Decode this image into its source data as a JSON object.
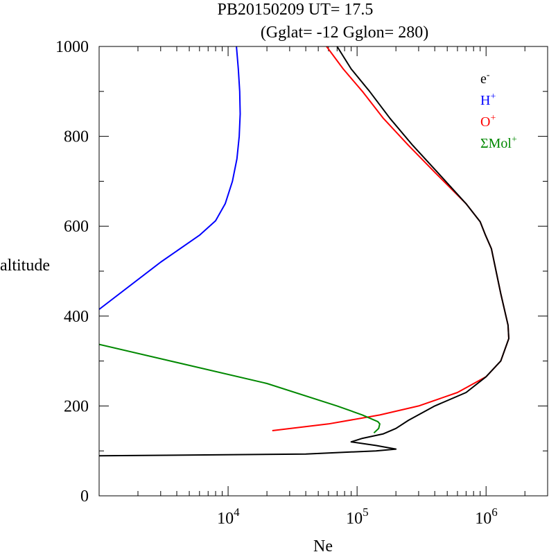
{
  "chart_data": {
    "type": "line",
    "title": "PB20150209   UT=  17.5",
    "subtitle": "(Gglat= -12   Gglon=  280)",
    "xlabel": "Ne",
    "ylabel": "altitude",
    "xscale": "log",
    "xlim": [
      1000,
      3000000
    ],
    "ylim": [
      0,
      1000
    ],
    "y_ticks": [
      0,
      200,
      400,
      600,
      800,
      1000
    ],
    "x_ticks": [
      {
        "value": 10000,
        "base": "10",
        "exp": "4"
      },
      {
        "value": 100000,
        "base": "10",
        "exp": "5"
      },
      {
        "value": 1000000,
        "base": "10",
        "exp": "6"
      }
    ],
    "grid": false,
    "legend_position": "top-right",
    "legend": [
      {
        "base": "e",
        "sup": "-",
        "color": "#000000"
      },
      {
        "base": "H",
        "sup": "+",
        "color": "#0000ff"
      },
      {
        "base": "O",
        "sup": "+",
        "color": "#ff0000"
      },
      {
        "base": "ΣMol",
        "sup": "+",
        "color": "#008800"
      }
    ],
    "series": [
      {
        "color": "#0000ff",
        "points": [
          [
            1000,
            415
          ],
          [
            3000,
            520
          ],
          [
            6000,
            580
          ],
          [
            8000,
            612
          ],
          [
            9500,
            650
          ],
          [
            10800,
            700
          ],
          [
            11700,
            750
          ],
          [
            12200,
            800
          ],
          [
            12400,
            850
          ],
          [
            12300,
            900
          ],
          [
            12000,
            950
          ],
          [
            11600,
            1000
          ]
        ]
      },
      {
        "color": "#ff0000",
        "points": [
          [
            22000,
            145
          ],
          [
            60000,
            160
          ],
          [
            150000,
            180
          ],
          [
            300000,
            200
          ],
          [
            600000,
            230
          ],
          [
            1000000,
            265
          ],
          [
            1300000,
            300
          ],
          [
            1500000,
            350
          ],
          [
            1480000,
            380
          ],
          [
            1300000,
            450
          ],
          [
            1100000,
            550
          ],
          [
            990000,
            580
          ],
          [
            900000,
            610
          ],
          [
            700000,
            650
          ],
          [
            400000,
            720
          ],
          [
            250000,
            780
          ],
          [
            160000,
            840
          ],
          [
            110000,
            900
          ],
          [
            78000,
            950
          ],
          [
            58000,
            1000
          ]
        ]
      },
      {
        "color": "#008800",
        "points": [
          [
            1000,
            337
          ],
          [
            20000,
            250
          ],
          [
            70000,
            200
          ],
          [
            110000,
            180
          ],
          [
            145000,
            165
          ],
          [
            150000,
            160
          ],
          [
            147000,
            150
          ],
          [
            135000,
            140
          ]
        ]
      },
      {
        "color": "#000000",
        "points": [
          [
            1000,
            89
          ],
          [
            40000,
            93
          ],
          [
            140000,
            100
          ],
          [
            200000,
            104
          ],
          [
            140000,
            112
          ],
          [
            90000,
            120
          ],
          [
            110000,
            128
          ],
          [
            160000,
            138
          ],
          [
            200000,
            150
          ],
          [
            250000,
            168
          ],
          [
            400000,
            200
          ],
          [
            700000,
            230
          ],
          [
            1000000,
            265
          ],
          [
            1300000,
            300
          ],
          [
            1500000,
            350
          ],
          [
            1480000,
            380
          ],
          [
            1300000,
            450
          ],
          [
            1100000,
            550
          ],
          [
            990000,
            580
          ],
          [
            900000,
            610
          ],
          [
            700000,
            650
          ],
          [
            420000,
            720
          ],
          [
            270000,
            780
          ],
          [
            180000,
            840
          ],
          [
            125000,
            900
          ],
          [
            90000,
            950
          ],
          [
            70000,
            1000
          ]
        ]
      }
    ]
  }
}
